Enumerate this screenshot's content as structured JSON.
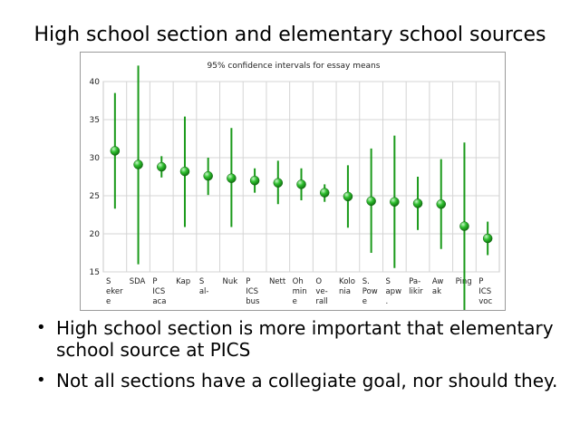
{
  "slide": {
    "title": "High school section and elementary school sources",
    "bullets": [
      "High school section is more important that elementary school source at PICS",
      "Not all sections have a collegiate goal, nor should they."
    ]
  },
  "chart_data": {
    "type": "scatter",
    "title": "95% confidence intervals for essay means",
    "xlabel": "",
    "ylabel": "",
    "ylim": [
      15,
      40
    ],
    "yticks": [
      15,
      20,
      25,
      30,
      35,
      40
    ],
    "grid": true,
    "categories": [
      [
        "S",
        "eker",
        "e"
      ],
      [
        "SDA"
      ],
      [
        "P",
        "ICS",
        "aca"
      ],
      [
        "Kap"
      ],
      [
        "S",
        "al-"
      ],
      [
        "Nuk"
      ],
      [
        "P",
        "ICS",
        "bus"
      ],
      [
        "Nett"
      ],
      [
        "Oh",
        "min",
        "e"
      ],
      [
        "O",
        "ve-",
        "rall"
      ],
      [
        "Kolo",
        "nia"
      ],
      [
        "S.",
        "Pow",
        "e"
      ],
      [
        "S",
        "apw",
        "."
      ],
      [
        "Pa-",
        "likir"
      ],
      [
        "Aw",
        "ak"
      ],
      [
        "Ping"
      ],
      [
        "P",
        "ICS",
        "voc"
      ]
    ],
    "means": [
      30.9,
      29.1,
      28.8,
      28.2,
      27.6,
      27.3,
      27.0,
      26.7,
      26.5,
      25.4,
      24.9,
      24.3,
      24.2,
      24.0,
      23.9,
      21.0,
      19.4
    ],
    "lower": [
      23.3,
      16.0,
      27.4,
      20.9,
      25.1,
      20.9,
      25.4,
      23.9,
      24.4,
      24.2,
      20.8,
      17.5,
      15.5,
      20.5,
      18.0,
      10.0,
      17.2
    ],
    "upper": [
      38.5,
      42.1,
      30.2,
      35.4,
      30.0,
      33.9,
      28.6,
      29.6,
      28.6,
      26.5,
      29.0,
      31.2,
      32.9,
      27.5,
      29.8,
      32.0,
      21.6
    ],
    "highlight_colors": {
      "default": "#1ea81e",
      "PICS aca": "#3a96e8",
      "PICS bus": "#c8a8ec",
      "PICS voc": "#ee5a7a"
    }
  }
}
